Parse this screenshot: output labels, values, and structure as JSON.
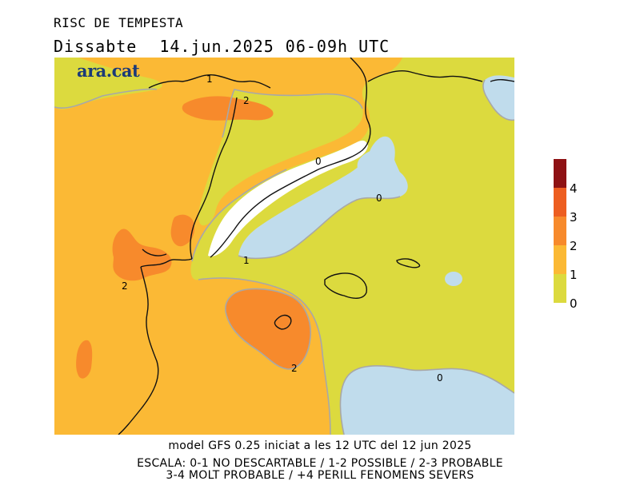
{
  "header": {
    "title": "RISC DE TEMPESTA",
    "day": "Dissabte",
    "date": "14.jun.2025",
    "time_range": "06-09h UTC"
  },
  "logo": {
    "text": "ara.cat"
  },
  "map": {
    "colors": {
      "level_0": "#c0dcec",
      "level_0_1": "#dcda3e",
      "level_1_2": "#fbb935",
      "level_2_3": "#f78a2c",
      "level_3_4": "#ed5e21",
      "level_4": "#8e1214",
      "no_data": "#ffffff",
      "border_lines": "#a8a8a8",
      "coast_lines": "#111111"
    },
    "contour_labels": [
      "1",
      "2",
      "0",
      "0",
      "1",
      "2",
      "2",
      "0"
    ]
  },
  "legend": {
    "labels": [
      "4",
      "3",
      "2",
      "1",
      "0"
    ]
  },
  "footer": {
    "line1": "model GFS 0.25 iniciat a les 12 UTC del 12 jun 2025",
    "line2": "ESCALA: 0-1 NO DESCARTABLE / 1-2 POSSIBLE / 2-3 PROBABLE",
    "line3": "3-4 MOLT PROBABLE / +4 PERILL FENOMENS SEVERS"
  }
}
